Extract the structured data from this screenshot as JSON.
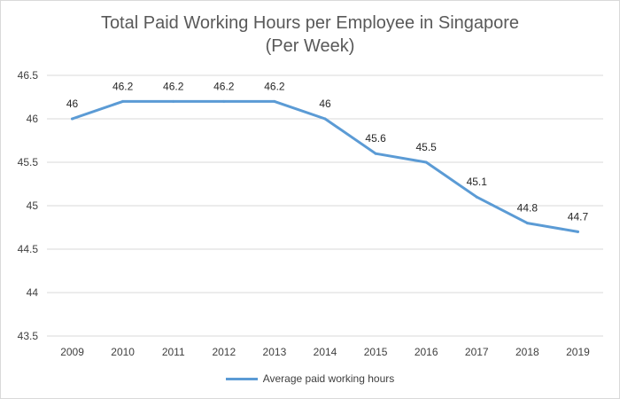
{
  "chart_data": {
    "type": "line",
    "title": "Total Paid Working Hours per Employee in Singapore",
    "subtitle": "(Per Week)",
    "xlabel": "",
    "ylabel": "",
    "categories": [
      "2009",
      "2010",
      "2011",
      "2012",
      "2013",
      "2014",
      "2015",
      "2016",
      "2017",
      "2018",
      "2019"
    ],
    "series": [
      {
        "name": "Average paid working hours",
        "values": [
          46,
          46.2,
          46.2,
          46.2,
          46.2,
          46,
          45.6,
          45.5,
          45.1,
          44.8,
          44.7
        ],
        "color": "#5b9bd5"
      }
    ],
    "ylim": [
      43.5,
      46.5
    ],
    "yticks": [
      "43.5",
      "44",
      "44.5",
      "45",
      "45.5",
      "46",
      "46.5"
    ],
    "grid": true,
    "legend_position": "bottom",
    "gridline_color": "#d9d9d9"
  }
}
